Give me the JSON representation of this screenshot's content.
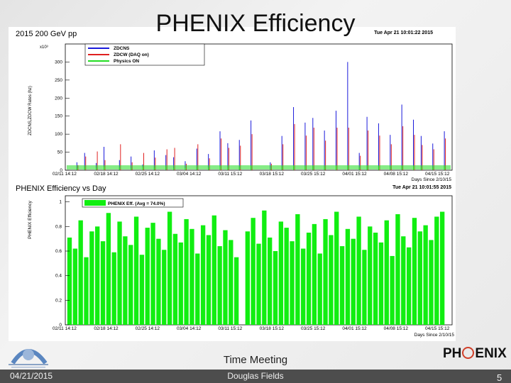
{
  "slide": {
    "title": "PHENIX Efficiency",
    "meeting": "Time Meeting",
    "date": "04/21/2015",
    "author": "Douglas Fields",
    "page": "5",
    "logo_right_a": "PH",
    "logo_right_b": "ENIX",
    "colors": {
      "footer": "#4d4d4d",
      "zdcns": "#1a1adb",
      "zdcw": "#e02020",
      "physics": "#22dd22",
      "eff": "#11ee11"
    }
  },
  "chart_data": [
    {
      "type": "line",
      "title": "2015 200 GeV pp",
      "timestamp": "Tue Apr 21 10:01:22 2015",
      "ylabel": "ZDCNS,ZDCW Rates (hz)",
      "exponent": "x10³",
      "xlabel": "Days Since 2/10/15",
      "ylim": [
        0,
        350
      ],
      "yticks": [
        0,
        50,
        100,
        150,
        200,
        250,
        300
      ],
      "xticks": [
        "02/11 14:12",
        "02/18 14:12",
        "02/25 14:12",
        "03/04 14:12",
        "03/11 15:12",
        "03/18 15:12",
        "03/25 15:12",
        "04/01 15:12",
        "04/08 15:12",
        "04/15 15:12"
      ],
      "x": [
        3,
        5,
        8,
        10,
        14,
        17,
        20,
        23,
        26,
        28,
        31,
        34,
        37,
        40,
        42,
        45,
        48,
        53,
        56,
        59,
        62,
        64,
        67,
        70,
        73,
        76,
        78,
        81,
        84,
        87,
        90,
        92,
        95,
        98
      ],
      "series": [
        {
          "name": "ZDCNS",
          "values": [
            22,
            48,
            20,
            65,
            28,
            38,
            16,
            55,
            42,
            36,
            25,
            60,
            45,
            108,
            75,
            84,
            138,
            22,
            95,
            175,
            132,
            145,
            110,
            165,
            300,
            48,
            148,
            130,
            98,
            182,
            140,
            95,
            74,
            108
          ]
        },
        {
          "name": "ZDCW (DAQ on)",
          "values": [
            14,
            38,
            52,
            28,
            72,
            22,
            48,
            35,
            58,
            62,
            18,
            72,
            33,
            88,
            62,
            68,
            100,
            18,
            72,
            128,
            96,
            118,
            82,
            118,
            118,
            40,
            110,
            96,
            72,
            122,
            98,
            70,
            58,
            88
          ]
        },
        {
          "name": "Physics ON",
          "values": [
            6,
            9,
            7,
            10,
            8,
            6,
            9,
            8,
            10,
            7,
            6,
            9,
            8,
            11,
            9,
            10,
            12,
            5,
            10,
            12,
            11,
            12,
            10,
            12,
            13,
            8,
            12,
            11,
            10,
            12,
            11,
            9,
            9,
            11
          ]
        }
      ]
    },
    {
      "type": "bar",
      "title": "PHENIX Efficiency vs Day",
      "timestamp": "Tue Apr 21 10:01:55 2015",
      "ylabel": "PHENIX Efficiency",
      "xlabel": "Days Since 2/10/15",
      "legend": "PHENIX Eff. (Avg = 74.0%)",
      "ylim": [
        0,
        1.05
      ],
      "yticks": [
        0,
        0.2,
        0.4,
        0.6,
        0.8,
        1
      ],
      "xticks": [
        "02/11 14:12",
        "02/18 14:12",
        "02/25 14:12",
        "03/04 14:12",
        "03/11 15:12",
        "03/18 15:12",
        "03/25 15:12",
        "04/01 15:12",
        "04/08 15:12",
        "04/15 15:12"
      ],
      "days": [
        1,
        2,
        3,
        4,
        5,
        6,
        7,
        8,
        9,
        10,
        11,
        12,
        13,
        14,
        15,
        16,
        17,
        18,
        19,
        20,
        21,
        22,
        23,
        24,
        25,
        26,
        27,
        28,
        29,
        30,
        31,
        33,
        34,
        35,
        36,
        37,
        38,
        39,
        40,
        41,
        42,
        43,
        44,
        45,
        46,
        47,
        48,
        49,
        50,
        51,
        52,
        53,
        54,
        55,
        56,
        57,
        58,
        59,
        60,
        61,
        62,
        63,
        64,
        65,
        66,
        67,
        68
      ],
      "values": [
        0.71,
        0.62,
        0.85,
        0.55,
        0.76,
        0.8,
        0.68,
        0.91,
        0.59,
        0.84,
        0.72,
        0.65,
        0.88,
        0.57,
        0.79,
        0.83,
        0.7,
        0.61,
        0.92,
        0.74,
        0.67,
        0.86,
        0.78,
        0.58,
        0.81,
        0.73,
        0.89,
        0.64,
        0.77,
        0.69,
        0.55,
        0.76,
        0.87,
        0.66,
        0.93,
        0.71,
        0.6,
        0.84,
        0.79,
        0.68,
        0.9,
        0.62,
        0.75,
        0.82,
        0.58,
        0.86,
        0.73,
        0.92,
        0.64,
        0.78,
        0.7,
        0.88,
        0.61,
        0.8,
        0.75,
        0.67,
        0.85,
        0.56,
        0.9,
        0.72,
        0.63,
        0.87,
        0.76,
        0.81,
        0.69,
        0.88,
        0.92
      ]
    }
  ]
}
